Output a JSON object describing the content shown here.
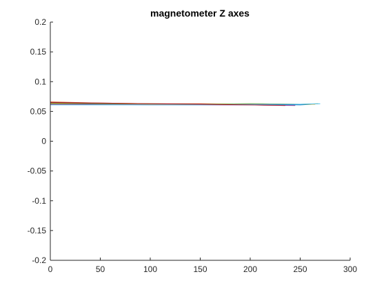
{
  "chart_data": {
    "type": "line",
    "title": "magnetometer Z axes",
    "xlabel": "",
    "ylabel": "",
    "xlim": [
      0,
      300
    ],
    "ylim": [
      -0.2,
      0.2
    ],
    "xticks": [
      0,
      50,
      100,
      150,
      200,
      250,
      300
    ],
    "yticks": [
      0.2,
      0.15,
      0.1,
      0.05,
      0,
      -0.05,
      -0.1,
      -0.15,
      -0.2
    ],
    "xtick_labels": [
      "0",
      "50",
      "100",
      "150",
      "200",
      "250",
      "300"
    ],
    "ytick_labels": [
      "0.2",
      "0.15",
      "0.1",
      "0.05",
      "0",
      "-0.05",
      "-0.1",
      "-0.15",
      "-0.2"
    ],
    "grid": false,
    "box": "left-bottom axes only",
    "series": [
      {
        "color": "#0072BD",
        "x": [
          0,
          50,
          100,
          150,
          200,
          250,
          262
        ],
        "y": [
          0.064,
          0.063,
          0.062,
          0.062,
          0.062,
          0.061,
          0.062
        ]
      },
      {
        "color": "#D95319",
        "x": [
          0,
          50,
          100,
          150,
          200,
          240
        ],
        "y": [
          0.066,
          0.064,
          0.063,
          0.063,
          0.062,
          0.062
        ]
      },
      {
        "color": "#EDB120",
        "x": [
          0,
          50,
          100,
          150,
          200,
          250,
          265
        ],
        "y": [
          0.063,
          0.063,
          0.062,
          0.062,
          0.063,
          0.062,
          0.062
        ]
      },
      {
        "color": "#7E2F8E",
        "x": [
          0,
          50,
          100,
          150,
          200,
          245
        ],
        "y": [
          0.062,
          0.062,
          0.061,
          0.061,
          0.061,
          0.06
        ]
      },
      {
        "color": "#77AC30",
        "x": [
          0,
          50,
          100,
          150,
          200,
          250,
          268
        ],
        "y": [
          0.064,
          0.063,
          0.063,
          0.062,
          0.063,
          0.062,
          0.063
        ]
      },
      {
        "color": "#4DBEEE",
        "x": [
          0,
          50,
          100,
          150,
          200,
          250,
          270
        ],
        "y": [
          0.061,
          0.061,
          0.061,
          0.061,
          0.062,
          0.062,
          0.063
        ]
      },
      {
        "color": "#A2142F",
        "x": [
          0,
          50,
          100,
          150,
          200,
          235
        ],
        "y": [
          0.065,
          0.064,
          0.063,
          0.062,
          0.061,
          0.06
        ]
      }
    ]
  }
}
